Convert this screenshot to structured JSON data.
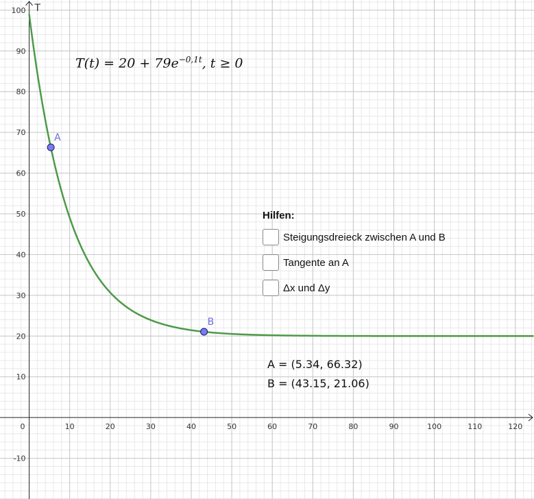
{
  "chart_data": {
    "type": "line",
    "xlabel": "",
    "ylabel": "T",
    "xlim": [
      -7.2,
      124.6
    ],
    "ylim": [
      -20.0,
      102.5
    ],
    "x_ticks": [
      10,
      20,
      30,
      40,
      50,
      60,
      70,
      80,
      90,
      100,
      110,
      120
    ],
    "y_ticks": [
      -10,
      10,
      20,
      30,
      40,
      50,
      60,
      70,
      80,
      90,
      100
    ],
    "origin_label": "0",
    "grid": true,
    "function": {
      "a": 20,
      "b": 79,
      "k": -0.1,
      "t_min": 0
    },
    "curve_color": "#4c9a47",
    "point_color": "#7b7bf0",
    "points": [
      {
        "name": "A",
        "x": 5.34,
        "y": 66.32
      },
      {
        "name": "B",
        "x": 43.15,
        "y": 21.06
      }
    ]
  },
  "formula": {
    "lhs": "T(t) = 20 + 79e",
    "exponent": "−0,1t",
    "rhs": ", t ≥ 0"
  },
  "hilfen": {
    "title": "Hilfen:",
    "options": [
      {
        "label": "Steigungsdreieck zwischen A und B",
        "checked": false
      },
      {
        "label": "Tangente an A",
        "checked": false
      },
      {
        "label": "Δx und Δy",
        "checked": false
      }
    ]
  },
  "coordinates": [
    {
      "text": "A  =  (5.34, 66.32)"
    },
    {
      "text": "B  =  (43.15, 21.06)"
    }
  ]
}
